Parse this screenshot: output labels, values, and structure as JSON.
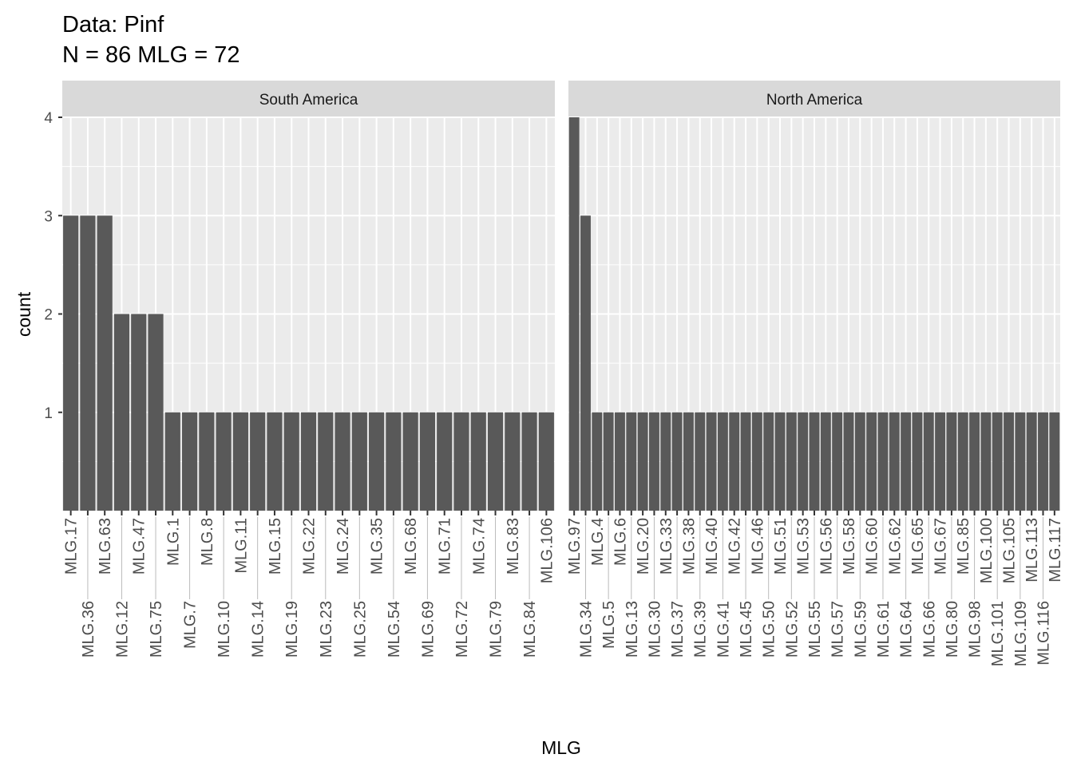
{
  "chart_data": {
    "type": "bar",
    "title": "Data: Pinf",
    "subtitle": "N = 86 MLG = 72",
    "xlabel": "MLG",
    "ylabel": "count",
    "ylim": [
      0,
      4
    ],
    "yticks": [
      1,
      2,
      3,
      4
    ],
    "grid": true,
    "bar_color": "#595959",
    "panel_bg": "#ebebeb",
    "strip_bg": "#d9d9d9",
    "facets": [
      {
        "name": "South America",
        "categories": [
          "MLG.17",
          "MLG.36",
          "MLG.63",
          "MLG.12",
          "MLG.47",
          "MLG.75",
          "MLG.1",
          "MLG.7",
          "MLG.8",
          "MLG.10",
          "MLG.11",
          "MLG.14",
          "MLG.15",
          "MLG.19",
          "MLG.22",
          "MLG.23",
          "MLG.24",
          "MLG.25",
          "MLG.35",
          "MLG.54",
          "MLG.68",
          "MLG.69",
          "MLG.71",
          "MLG.72",
          "MLG.74",
          "MLG.79",
          "MLG.83",
          "MLG.84",
          "MLG.106"
        ],
        "values": [
          3,
          3,
          3,
          2,
          2,
          2,
          1,
          1,
          1,
          1,
          1,
          1,
          1,
          1,
          1,
          1,
          1,
          1,
          1,
          1,
          1,
          1,
          1,
          1,
          1,
          1,
          1,
          1,
          1
        ]
      },
      {
        "name": "North America",
        "categories": [
          "MLG.97",
          "MLG.34",
          "MLG.4",
          "MLG.5",
          "MLG.6",
          "MLG.13",
          "MLG.20",
          "MLG.30",
          "MLG.33",
          "MLG.37",
          "MLG.38",
          "MLG.39",
          "MLG.40",
          "MLG.41",
          "MLG.42",
          "MLG.45",
          "MLG.46",
          "MLG.50",
          "MLG.51",
          "MLG.52",
          "MLG.53",
          "MLG.55",
          "MLG.56",
          "MLG.57",
          "MLG.58",
          "MLG.59",
          "MLG.60",
          "MLG.61",
          "MLG.62",
          "MLG.64",
          "MLG.65",
          "MLG.66",
          "MLG.67",
          "MLG.80",
          "MLG.85",
          "MLG.98",
          "MLG.100",
          "MLG.101",
          "MLG.105",
          "MLG.109",
          "MLG.113",
          "MLG.116",
          "MLG.117"
        ],
        "values": [
          4,
          3,
          1,
          1,
          1,
          1,
          1,
          1,
          1,
          1,
          1,
          1,
          1,
          1,
          1,
          1,
          1,
          1,
          1,
          1,
          1,
          1,
          1,
          1,
          1,
          1,
          1,
          1,
          1,
          1,
          1,
          1,
          1,
          1,
          1,
          1,
          1,
          1,
          1,
          1,
          1,
          1,
          1
        ]
      }
    ]
  }
}
